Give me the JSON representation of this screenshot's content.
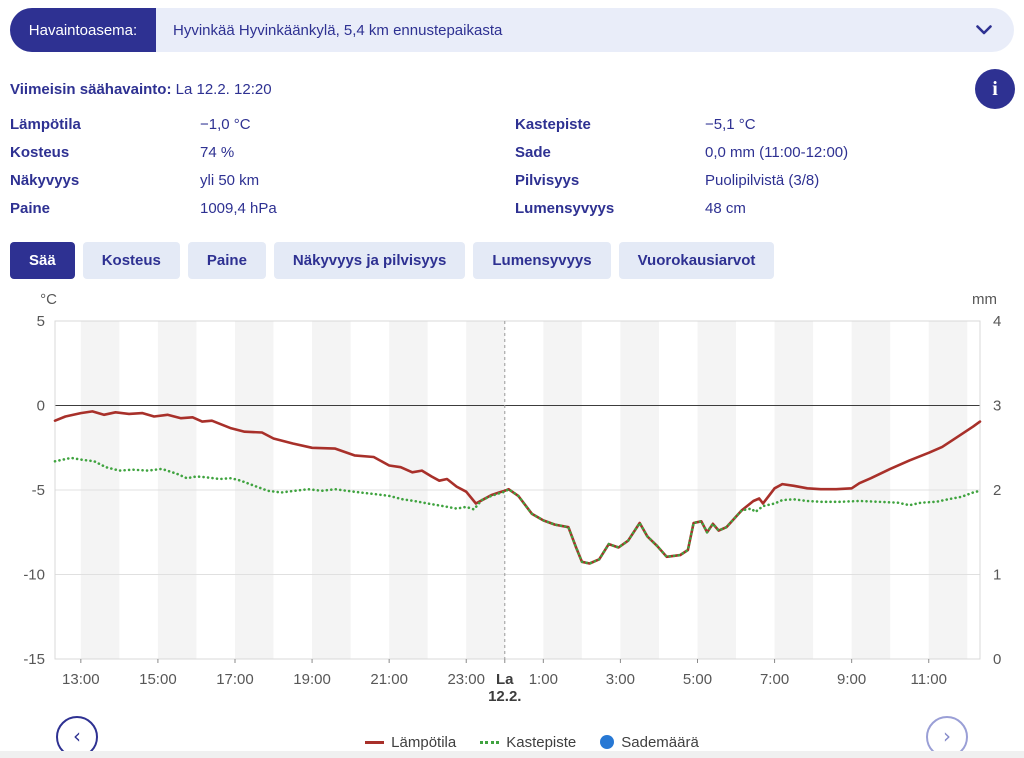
{
  "colors": {
    "brand": "#2e3192",
    "bar_background": "#e9edf9",
    "tab_background": "#e4eaf6",
    "temperature_red": "#a8302a",
    "dewpoint_green": "#3fa33f",
    "rain_blue": "#2778d4",
    "axis_text": "#575757"
  },
  "station_bar": {
    "label": "Havaintoasema:",
    "value": "Hyvinkää Hyvinkäänkylä, 5,4 km ennustepaikasta"
  },
  "latest": {
    "label": "Viimeisin säähavainto:",
    "value": " La 12.2. 12:20"
  },
  "info_button": {
    "glyph": "i"
  },
  "observations": [
    {
      "label": "Lämpötila",
      "value": "−1,0 °C"
    },
    {
      "label": "Kastepiste",
      "value": "−5,1 °C"
    },
    {
      "label": "Kosteus",
      "value": "74 %"
    },
    {
      "label": "Sade",
      "value": "0,0 mm (11:00-12:00)"
    },
    {
      "label": "Näkyvyys",
      "value": "yli 50 km"
    },
    {
      "label": "Pilvisyys",
      "value": "Puolipilvistä (3/8)"
    },
    {
      "label": "Paine",
      "value": "1009,4 hPa"
    },
    {
      "label": "Lumensyvyys",
      "value": "48 cm"
    }
  ],
  "tabs": [
    {
      "label": "Sää",
      "active": true
    },
    {
      "label": "Kosteus",
      "active": false
    },
    {
      "label": "Paine",
      "active": false
    },
    {
      "label": "Näkyvyys ja pilvisyys",
      "active": false
    },
    {
      "label": "Lumensyvyys",
      "active": false
    },
    {
      "label": "Vuorokausiarvot",
      "active": false
    }
  ],
  "chart_data": {
    "type": "line",
    "y_left": {
      "label": "°C",
      "ticks": [
        5,
        0,
        -5,
        -10,
        -15
      ],
      "range": [
        -15,
        5
      ]
    },
    "y_right": {
      "label": "mm",
      "ticks": [
        4,
        3,
        2,
        1,
        0
      ],
      "range": [
        0,
        4
      ]
    },
    "x_axis": {
      "range_hours": [
        12.33,
        36.33
      ],
      "labels": [
        {
          "hour": 13,
          "text": "13:00"
        },
        {
          "hour": 15,
          "text": "15:00"
        },
        {
          "hour": 17,
          "text": "17:00"
        },
        {
          "hour": 19,
          "text": "19:00"
        },
        {
          "hour": 21,
          "text": "21:00"
        },
        {
          "hour": 23,
          "text": "23:00"
        },
        {
          "hour": 25,
          "text": "1:00"
        },
        {
          "hour": 27,
          "text": "3:00"
        },
        {
          "hour": 29,
          "text": "5:00"
        },
        {
          "hour": 31,
          "text": "7:00"
        },
        {
          "hour": 33,
          "text": "9:00"
        },
        {
          "hour": 35,
          "text": "11:00"
        }
      ],
      "day_marker": {
        "hour": 24,
        "weekday": "La",
        "date": "12.2."
      },
      "stripe_hours": [
        13,
        15,
        17,
        19,
        21,
        23,
        25,
        27,
        29,
        31,
        33,
        35
      ]
    },
    "gridlines": [
      {
        "value": 0,
        "strong": true
      },
      {
        "value": -5,
        "strong": false
      },
      {
        "value": -10,
        "strong": false
      }
    ],
    "series": [
      {
        "name": "Lämpötila",
        "unit": "°C",
        "color": "#a8302a",
        "style": "solid",
        "points": [
          [
            12.33,
            -0.9
          ],
          [
            12.6,
            -0.65
          ],
          [
            13.0,
            -0.45
          ],
          [
            13.3,
            -0.35
          ],
          [
            13.6,
            -0.55
          ],
          [
            13.9,
            -0.4
          ],
          [
            14.25,
            -0.5
          ],
          [
            14.6,
            -0.45
          ],
          [
            14.9,
            -0.65
          ],
          [
            15.25,
            -0.55
          ],
          [
            15.6,
            -0.75
          ],
          [
            15.9,
            -0.7
          ],
          [
            16.15,
            -0.95
          ],
          [
            16.4,
            -0.9
          ],
          [
            16.9,
            -1.35
          ],
          [
            17.25,
            -1.55
          ],
          [
            17.7,
            -1.6
          ],
          [
            18.0,
            -1.95
          ],
          [
            18.5,
            -2.25
          ],
          [
            19.0,
            -2.5
          ],
          [
            19.6,
            -2.55
          ],
          [
            20.1,
            -2.95
          ],
          [
            20.6,
            -3.05
          ],
          [
            21.0,
            -3.55
          ],
          [
            21.3,
            -3.65
          ],
          [
            21.6,
            -3.95
          ],
          [
            21.85,
            -3.85
          ],
          [
            22.1,
            -4.2
          ],
          [
            22.3,
            -4.45
          ],
          [
            22.5,
            -4.35
          ],
          [
            22.75,
            -4.8
          ],
          [
            23.0,
            -5.1
          ],
          [
            23.25,
            -5.8
          ],
          [
            23.45,
            -5.55
          ],
          [
            23.65,
            -5.3
          ],
          [
            23.85,
            -5.15
          ],
          [
            24.0,
            -5.05
          ],
          [
            24.1,
            -4.95
          ],
          [
            24.35,
            -5.35
          ],
          [
            24.7,
            -6.4
          ],
          [
            25.0,
            -6.8
          ],
          [
            25.3,
            -7.05
          ],
          [
            25.65,
            -7.2
          ],
          [
            25.85,
            -8.4
          ],
          [
            26.0,
            -9.25
          ],
          [
            26.2,
            -9.35
          ],
          [
            26.45,
            -9.1
          ],
          [
            26.7,
            -8.2
          ],
          [
            26.95,
            -8.4
          ],
          [
            27.2,
            -8.0
          ],
          [
            27.5,
            -6.95
          ],
          [
            27.7,
            -7.75
          ],
          [
            27.95,
            -8.3
          ],
          [
            28.2,
            -8.95
          ],
          [
            28.55,
            -8.85
          ],
          [
            28.75,
            -8.55
          ],
          [
            28.9,
            -6.95
          ],
          [
            29.1,
            -6.85
          ],
          [
            29.25,
            -7.5
          ],
          [
            29.4,
            -7.0
          ],
          [
            29.55,
            -7.4
          ],
          [
            29.75,
            -7.2
          ],
          [
            29.95,
            -6.7
          ],
          [
            30.15,
            -6.2
          ],
          [
            30.45,
            -5.65
          ],
          [
            30.6,
            -5.5
          ],
          [
            30.7,
            -5.8
          ],
          [
            30.85,
            -5.35
          ],
          [
            31.0,
            -4.9
          ],
          [
            31.2,
            -4.65
          ],
          [
            31.5,
            -4.75
          ],
          [
            31.85,
            -4.9
          ],
          [
            32.2,
            -4.95
          ],
          [
            32.6,
            -4.95
          ],
          [
            33.0,
            -4.9
          ],
          [
            33.2,
            -4.6
          ],
          [
            33.5,
            -4.3
          ],
          [
            34.0,
            -3.75
          ],
          [
            34.5,
            -3.25
          ],
          [
            35.0,
            -2.8
          ],
          [
            35.35,
            -2.45
          ],
          [
            35.75,
            -1.85
          ],
          [
            36.15,
            -1.25
          ],
          [
            36.33,
            -0.95
          ]
        ]
      },
      {
        "name": "Kastepiste",
        "unit": "°C",
        "color": "#3fa33f",
        "style": "dotted",
        "points": [
          [
            12.33,
            -3.3
          ],
          [
            12.75,
            -3.1
          ],
          [
            13.0,
            -3.2
          ],
          [
            13.35,
            -3.3
          ],
          [
            13.65,
            -3.65
          ],
          [
            14.0,
            -3.85
          ],
          [
            14.35,
            -3.8
          ],
          [
            14.75,
            -3.85
          ],
          [
            15.1,
            -3.75
          ],
          [
            15.5,
            -4.05
          ],
          [
            15.75,
            -4.3
          ],
          [
            16.0,
            -4.2
          ],
          [
            16.25,
            -4.25
          ],
          [
            16.6,
            -4.35
          ],
          [
            16.9,
            -4.3
          ],
          [
            17.15,
            -4.45
          ],
          [
            17.5,
            -4.75
          ],
          [
            17.85,
            -5.05
          ],
          [
            18.2,
            -5.15
          ],
          [
            18.55,
            -5.05
          ],
          [
            18.9,
            -4.95
          ],
          [
            19.25,
            -5.05
          ],
          [
            19.6,
            -4.95
          ],
          [
            19.9,
            -5.05
          ],
          [
            20.25,
            -5.15
          ],
          [
            20.65,
            -5.25
          ],
          [
            21.0,
            -5.35
          ],
          [
            21.35,
            -5.55
          ],
          [
            21.65,
            -5.65
          ],
          [
            22.0,
            -5.8
          ],
          [
            22.4,
            -5.95
          ],
          [
            22.75,
            -6.1
          ],
          [
            23.0,
            -6.0
          ],
          [
            23.2,
            -6.15
          ],
          [
            23.4,
            -5.6
          ],
          [
            23.65,
            -5.35
          ],
          [
            23.85,
            -5.2
          ],
          [
            24.0,
            -5.1
          ],
          [
            24.1,
            -4.95
          ],
          [
            24.35,
            -5.35
          ],
          [
            24.7,
            -6.4
          ],
          [
            25.0,
            -6.8
          ],
          [
            25.3,
            -7.05
          ],
          [
            25.65,
            -7.2
          ],
          [
            25.85,
            -8.4
          ],
          [
            26.0,
            -9.25
          ],
          [
            26.2,
            -9.35
          ],
          [
            26.45,
            -9.1
          ],
          [
            26.7,
            -8.2
          ],
          [
            26.95,
            -8.4
          ],
          [
            27.2,
            -8.0
          ],
          [
            27.5,
            -6.95
          ],
          [
            27.7,
            -7.75
          ],
          [
            27.95,
            -8.3
          ],
          [
            28.2,
            -8.95
          ],
          [
            28.55,
            -8.85
          ],
          [
            28.75,
            -8.55
          ],
          [
            28.9,
            -6.95
          ],
          [
            29.1,
            -6.85
          ],
          [
            29.25,
            -7.5
          ],
          [
            29.4,
            -7.0
          ],
          [
            29.55,
            -7.4
          ],
          [
            29.75,
            -7.2
          ],
          [
            29.95,
            -6.7
          ],
          [
            30.15,
            -6.2
          ],
          [
            30.4,
            -6.1
          ],
          [
            30.5,
            -6.3
          ],
          [
            30.7,
            -5.95
          ],
          [
            31.0,
            -5.8
          ],
          [
            31.2,
            -5.6
          ],
          [
            31.5,
            -5.55
          ],
          [
            31.85,
            -5.65
          ],
          [
            32.2,
            -5.7
          ],
          [
            32.7,
            -5.7
          ],
          [
            33.2,
            -5.65
          ],
          [
            33.7,
            -5.7
          ],
          [
            34.2,
            -5.75
          ],
          [
            34.5,
            -5.9
          ],
          [
            34.8,
            -5.75
          ],
          [
            35.2,
            -5.7
          ],
          [
            35.5,
            -5.55
          ],
          [
            35.85,
            -5.4
          ],
          [
            36.15,
            -5.15
          ],
          [
            36.33,
            -5.05
          ]
        ]
      },
      {
        "name": "Sademäärä",
        "unit": "mm",
        "color": "#2778d4",
        "style": "bar",
        "points": []
      }
    ],
    "legend": [
      {
        "label": "Lämpötila",
        "swatch": "line"
      },
      {
        "label": "Kastepiste",
        "swatch": "dotted"
      },
      {
        "label": "Sademäärä",
        "swatch": "circle"
      }
    ]
  },
  "nav": {
    "prev": "‹",
    "next": "›"
  }
}
